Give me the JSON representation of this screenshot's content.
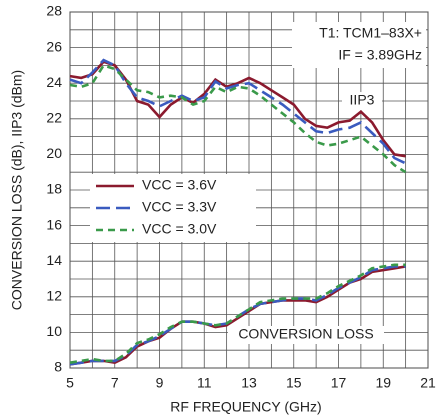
{
  "chart_data": {
    "type": "line",
    "xlabel": "RF FREQUENCY (GHz)",
    "ylabel": "CONVERSION LOSS (dB), IIP3 (dBm)",
    "annotations": [
      "T1: TCM1–83X+",
      "IF = 3.89GHz",
      "IIP3",
      "CONVERSION LOSS"
    ],
    "xlim": [
      5,
      21
    ],
    "xticks": [
      5,
      7,
      9,
      11,
      13,
      15,
      17,
      19,
      21
    ],
    "xminor": [
      6,
      8,
      10,
      12,
      14,
      16,
      18,
      20
    ],
    "ylim": [
      8,
      28
    ],
    "yticks": [
      8,
      10,
      12,
      14,
      16,
      18,
      20,
      22,
      24,
      26,
      28
    ],
    "yminor": [
      9,
      11,
      13,
      15,
      17,
      19,
      21,
      23,
      25,
      27
    ],
    "grid": true,
    "x": [
      5,
      5.5,
      6,
      6.5,
      7,
      7.5,
      8,
      8.5,
      9,
      9.5,
      10,
      10.5,
      11,
      11.5,
      12,
      12.5,
      13,
      13.5,
      14,
      14.5,
      15,
      15.5,
      16,
      16.5,
      17,
      17.5,
      18,
      18.5,
      19,
      19.5,
      20
    ],
    "series": [
      {
        "name": "VCC = 3.6V",
        "color": "#8b1a2e",
        "dash": "none",
        "iip3": [
          24.4,
          24.3,
          24.5,
          25.2,
          25.0,
          24.2,
          23.0,
          22.8,
          22.1,
          22.8,
          23.2,
          22.9,
          23.4,
          24.2,
          23.8,
          24.0,
          24.3,
          24.0,
          23.6,
          23.2,
          22.8,
          22.0,
          21.6,
          21.5,
          21.8,
          21.9,
          22.4,
          21.8,
          20.8,
          20.0,
          19.9
        ],
        "loss": [
          8.2,
          8.3,
          8.4,
          8.4,
          8.3,
          8.6,
          9.2,
          9.5,
          9.7,
          10.2,
          10.6,
          10.6,
          10.5,
          10.3,
          10.4,
          10.8,
          11.2,
          11.6,
          11.7,
          11.8,
          11.8,
          11.8,
          11.7,
          12.0,
          12.4,
          12.8,
          13.0,
          13.4,
          13.5,
          13.6,
          13.7
        ]
      },
      {
        "name": "VCC = 3.3V",
        "color": "#3a5bbf",
        "dash": "14 6",
        "iip3": [
          24.2,
          24.0,
          24.6,
          25.3,
          25.0,
          24.0,
          23.2,
          23.0,
          22.7,
          23.0,
          23.3,
          23.0,
          23.2,
          24.1,
          23.7,
          23.9,
          24.0,
          23.6,
          23.2,
          22.8,
          22.3,
          21.8,
          21.3,
          21.2,
          21.4,
          21.5,
          21.8,
          21.2,
          20.6,
          19.8,
          19.5
        ],
        "loss": [
          8.2,
          8.3,
          8.4,
          8.4,
          8.4,
          8.7,
          9.3,
          9.5,
          9.8,
          10.2,
          10.6,
          10.6,
          10.5,
          10.4,
          10.5,
          10.9,
          11.3,
          11.6,
          11.7,
          11.8,
          11.9,
          11.9,
          11.8,
          12.1,
          12.5,
          12.8,
          13.1,
          13.5,
          13.6,
          13.7,
          13.7
        ]
      },
      {
        "name": "VCC = 3.0V",
        "color": "#3a9a4a",
        "dash": "7 5",
        "iip3": [
          23.9,
          23.8,
          24.0,
          25.0,
          24.8,
          24.2,
          23.6,
          23.5,
          23.2,
          23.3,
          23.2,
          22.8,
          23.0,
          23.8,
          23.5,
          23.8,
          23.7,
          23.3,
          22.8,
          22.3,
          21.8,
          21.2,
          20.7,
          20.5,
          20.6,
          20.8,
          21.0,
          20.5,
          20.0,
          19.4,
          19.0
        ],
        "loss": [
          8.3,
          8.4,
          8.5,
          8.4,
          8.4,
          8.8,
          9.4,
          9.6,
          9.9,
          10.3,
          10.6,
          10.6,
          10.5,
          10.4,
          10.5,
          10.9,
          11.3,
          11.7,
          11.8,
          11.9,
          11.9,
          11.9,
          11.9,
          12.2,
          12.6,
          12.9,
          13.2,
          13.6,
          13.7,
          13.8,
          13.8
        ]
      }
    ]
  }
}
